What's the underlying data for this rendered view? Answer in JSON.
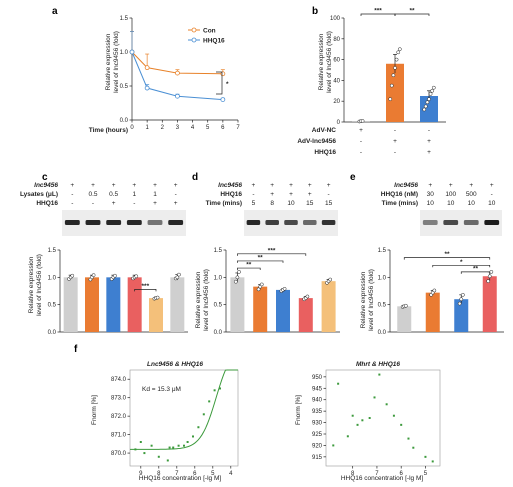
{
  "panels": {
    "a": {
      "letter": "a",
      "ylabel_lines": [
        "Relative expression",
        "level of lnc9456 (fold)"
      ],
      "xlabel": "Time (hours)",
      "ylim": [
        0,
        1.5
      ],
      "yticks": [
        "0.0",
        "0.5",
        "1.0",
        "1.5"
      ],
      "xticks": [
        "0",
        "1",
        "2",
        "3",
        "4",
        "5",
        "6",
        "7"
      ],
      "legend": [
        "Con",
        "HHQ16"
      ],
      "sig": "*",
      "colors": {
        "con": "#e8822a",
        "hhq16": "#4a8fd4"
      }
    },
    "b": {
      "letter": "b",
      "ylabel_lines": [
        "Relative expression",
        "level of lnc9456 (fold)"
      ],
      "ylim": [
        0,
        100
      ],
      "yticks": [
        "0",
        "20",
        "40",
        "60",
        "80",
        "100"
      ],
      "row_labels": [
        "AdV-NC",
        "AdV-lnc9456",
        "HHQ16"
      ],
      "row_marks": [
        [
          "+",
          "-",
          "-"
        ],
        [
          "-",
          "+",
          "+"
        ],
        [
          "-",
          "-",
          "+"
        ]
      ],
      "sig": [
        "***",
        "**"
      ]
    },
    "c": {
      "letter": "c",
      "row_labels": [
        "lnc9456",
        "Lysates (μL)",
        "HHQ16"
      ],
      "row_marks": [
        [
          "+",
          "+",
          "+",
          "+",
          "+",
          "+"
        ],
        [
          "-",
          "0.5",
          "0.5",
          "1",
          "1",
          "-"
        ],
        [
          "-",
          "-",
          "+",
          "-",
          "+",
          "+"
        ]
      ],
      "ylabel_lines": [
        "Relative expression",
        "level of lnc9456 (fold)"
      ],
      "yticks": [
        "0.0",
        "0.5",
        "1.0",
        "1.5"
      ],
      "sig": "***"
    },
    "d": {
      "letter": "d",
      "row_labels": [
        "lnc9456",
        "HHQ16",
        "Time (mins)"
      ],
      "row_marks": [
        [
          "+",
          "+",
          "+",
          "+",
          "+"
        ],
        [
          "-",
          "+",
          "+",
          "+",
          "-"
        ],
        [
          "5",
          "8",
          "10",
          "15",
          "15"
        ]
      ],
      "ylabel_lines": [
        "Relative expression",
        "level of lnc9456 (fold)"
      ],
      "yticks": [
        "0.0",
        "0.5",
        "1.0",
        "1.5"
      ],
      "sig": [
        "***",
        "**",
        "**"
      ]
    },
    "e": {
      "letter": "e",
      "row_labels": [
        "lnc9456",
        "HHQ16 (nM)",
        "Time (mins)"
      ],
      "row_marks": [
        [
          "+",
          "+",
          "+",
          "+"
        ],
        [
          "30",
          "100",
          "500",
          "-"
        ],
        [
          "10",
          "10",
          "10",
          "10"
        ]
      ],
      "ylabel_lines": [
        "Relative expression",
        "level of lnc9456 (fold)"
      ],
      "yticks": [
        "0.0",
        "0.5",
        "1.0",
        "1.5"
      ],
      "sig": [
        "**",
        "*",
        "**"
      ]
    },
    "f": {
      "letter": "f",
      "left_title": "Lnc9456 & HHQ16",
      "right_title": "Mhrt & HHQ16",
      "ylabel": "Fnorm [%]",
      "xlabel": "HHQ16 concentration [-lg M]",
      "kd": "Kd = 15.3 μM",
      "left_yticks": [
        "870.0",
        "871.0",
        "872.0",
        "873.0",
        "874.0"
      ],
      "left_xticks": [
        "9",
        "8",
        "7",
        "6",
        "5",
        "4"
      ],
      "right_yticks": [
        "915",
        "920",
        "925",
        "930",
        "935",
        "940",
        "945",
        "950"
      ],
      "right_xticks": [
        "8",
        "7",
        "6",
        "5"
      ]
    }
  },
  "chart_data": [
    {
      "type": "line",
      "panel": "a",
      "x": [
        0,
        1,
        3,
        6
      ],
      "series": [
        {
          "name": "Con",
          "values": [
            1.0,
            0.77,
            0.69,
            0.68
          ],
          "errors": [
            0.3,
            0.2,
            0.05,
            0.06
          ]
        },
        {
          "name": "HHQ16",
          "values": [
            1.0,
            0.47,
            0.35,
            0.3
          ],
          "errors": [
            0.3,
            0.05,
            0.03,
            0.02
          ]
        }
      ],
      "xlabel": "Time (hours)",
      "ylabel": "Relative expression level of lnc9456 (fold)",
      "xlim": [
        0,
        7
      ],
      "ylim": [
        0,
        1.5
      ]
    },
    {
      "type": "bar",
      "panel": "b",
      "values": [
        0.8,
        56,
        25
      ],
      "errors": [
        0.3,
        9,
        5
      ],
      "points": [
        [
          0.5,
          0.8,
          1.0
        ],
        [
          22,
          35,
          45,
          52,
          60,
          67,
          70
        ],
        [
          12,
          15,
          19,
          22,
          27,
          30,
          33
        ]
      ],
      "colors": [
        "#b9b9b9",
        "#ea7b32",
        "#3e7fd0"
      ],
      "ylim": [
        0,
        100
      ]
    },
    {
      "type": "bar",
      "panel": "c",
      "values": [
        1.0,
        1.0,
        1.0,
        1.0,
        0.62,
        1.0
      ],
      "errors": [
        0.04,
        0.04,
        0.04,
        0.04,
        0.02,
        0.05
      ],
      "points": [
        [
          0.97,
          1.0,
          1.03
        ],
        [
          0.96,
          1.0,
          1.04
        ],
        [
          0.97,
          1.0,
          1.03
        ],
        [
          0.98,
          1.0,
          1.02
        ],
        [
          0.61,
          0.62,
          0.63
        ],
        [
          0.98,
          1.0,
          1.05
        ]
      ],
      "colors": [
        "#cfcfcf",
        "#ea7b32",
        "#3e7fd0",
        "#e96060",
        "#f4c07a",
        "#cfcfcf"
      ],
      "ylim": [
        0,
        1.5
      ]
    },
    {
      "type": "bar",
      "panel": "d",
      "values": [
        1.0,
        0.83,
        0.77,
        0.62,
        0.93
      ],
      "errors": [
        0.08,
        0.04,
        0.02,
        0.03,
        0.03
      ],
      "points": [
        [
          0.92,
          1.0,
          1.1
        ],
        [
          0.78,
          0.83,
          0.87
        ],
        [
          0.75,
          0.77,
          0.79
        ],
        [
          0.6,
          0.62,
          0.65
        ],
        [
          0.9,
          0.93,
          0.96
        ]
      ],
      "colors": [
        "#cfcfcf",
        "#ea7b32",
        "#3e7fd0",
        "#e96060",
        "#f4c07a"
      ],
      "ylim": [
        0,
        1.5
      ]
    },
    {
      "type": "bar",
      "panel": "e",
      "values": [
        0.47,
        0.72,
        0.6,
        1.02
      ],
      "errors": [
        0.02,
        0.04,
        0.08,
        0.08
      ],
      "points": [
        [
          0.46,
          0.47,
          0.48
        ],
        [
          0.68,
          0.72,
          0.76
        ],
        [
          0.52,
          0.6,
          0.68
        ],
        [
          0.93,
          1.02,
          1.1
        ]
      ],
      "colors": [
        "#cfcfcf",
        "#ea7b32",
        "#3e7fd0",
        "#e96060"
      ],
      "ylim": [
        0,
        1.5
      ]
    },
    {
      "type": "scatter",
      "panel": "f-left",
      "x": [
        9.3,
        9.0,
        8.8,
        8.4,
        8.0,
        7.5,
        7.4,
        7.2,
        6.9,
        6.6,
        6.4,
        6.1,
        5.8,
        5.5,
        5.2,
        4.9,
        4.6
      ],
      "y": [
        870.2,
        870.6,
        870.0,
        870.4,
        869.8,
        869.6,
        870.3,
        870.3,
        870.4,
        870.4,
        870.6,
        870.9,
        871.4,
        872.1,
        872.8,
        873.4,
        873.5
      ],
      "fit_kd_uM": 15.3,
      "xlabel": "HHQ16 concentration [-lg M]",
      "ylabel": "Fnorm [%]",
      "xlim": [
        9.6,
        3.6
      ],
      "ylim": [
        869.3,
        874.5
      ]
    },
    {
      "type": "scatter",
      "panel": "f-right",
      "x": [
        8.8,
        8.6,
        8.2,
        8.0,
        7.8,
        7.6,
        7.3,
        7.1,
        6.9,
        6.6,
        6.3,
        6.0,
        5.7,
        5.5,
        5.0,
        4.7
      ],
      "y": [
        920,
        947,
        924,
        933,
        929,
        931,
        932,
        941,
        951,
        938,
        933,
        929,
        923,
        919,
        915,
        913
      ],
      "xlabel": "HHQ16 concentration [-lg M]",
      "ylabel": "Fnorm [%]",
      "xlim": [
        9.1,
        4.4
      ],
      "ylim": [
        911,
        953
      ]
    }
  ]
}
